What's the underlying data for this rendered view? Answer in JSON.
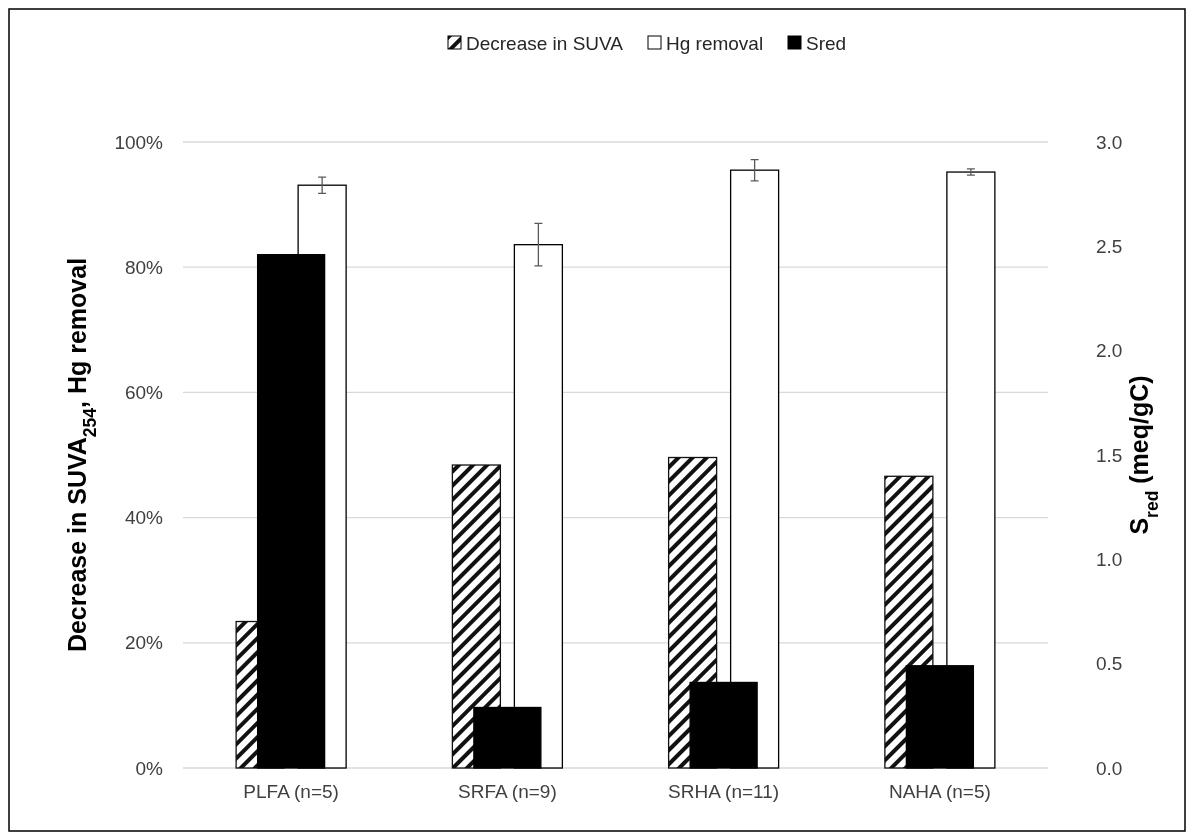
{
  "chart_data": {
    "type": "bar",
    "categories": [
      "PLFA (n=5)",
      "SRFA (n=9)",
      "SRHA (n=11)",
      "NAHA (n=5)"
    ],
    "ylabel": "Decrease in SUVA$_{254}$, Hg removal",
    "y2label": "S$_{red}$ (meq/gC)",
    "series": [
      {
        "name": "Decrease in SUVA",
        "color": "#111111",
        "values": [
          23.4,
          48.4,
          49.6,
          46.6
        ]
      },
      {
        "name": "Hg removal",
        "color": "#ffffff",
        "values": [
          93.1,
          83.6,
          95.5,
          95.2
        ],
        "errors": [
          1.3,
          3.4,
          1.7,
          0.5
        ]
      },
      {
        "name": "Sred",
        "color": "#000000",
        "values": [
          2.46,
          0.29,
          0.41,
          0.49
        ],
        "axis": "y2"
      }
    ],
    "ylim": [
      0,
      100
    ],
    "yticks": [
      {
        "value": 0,
        "label": "0%"
      },
      {
        "value": 20,
        "label": "20%"
      },
      {
        "value": 40,
        "label": "40%"
      },
      {
        "value": 60,
        "label": "60%"
      },
      {
        "value": 80,
        "label": "80%"
      },
      {
        "value": 100,
        "label": "100%"
      }
    ],
    "y2lim": [
      0,
      3
    ],
    "y2ticks": [
      {
        "value": 0,
        "label": "0.0"
      },
      {
        "value": 0.5,
        "label": "0.5"
      },
      {
        "value": 1,
        "label": "1.0"
      },
      {
        "value": 1.5,
        "label": "1.5"
      },
      {
        "value": 2,
        "label": "2.0"
      },
      {
        "value": 2.5,
        "label": "2.5"
      },
      {
        "value": 3,
        "label": "3.0"
      }
    ],
    "grid": "y",
    "legend": "top"
  }
}
